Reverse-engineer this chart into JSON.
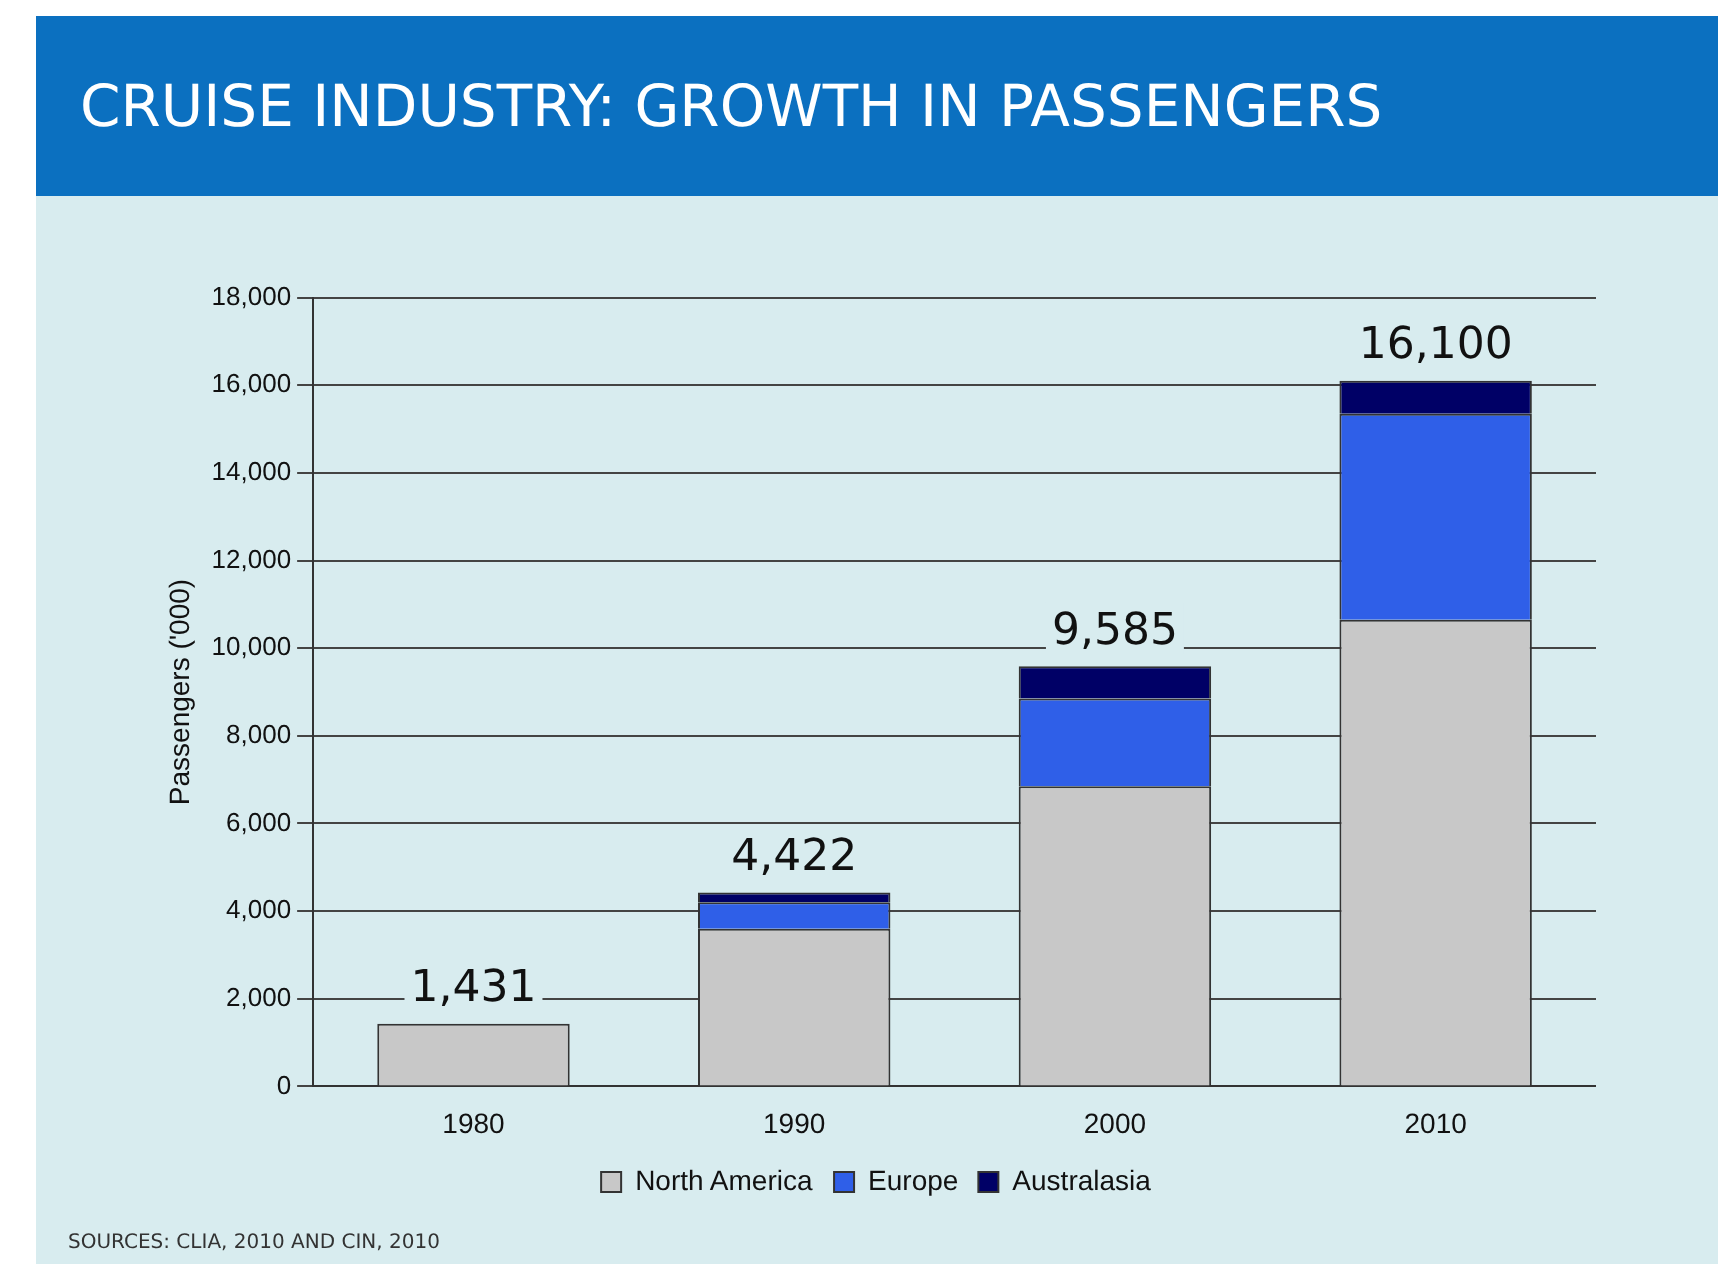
{
  "chart_data": {
    "type": "bar",
    "title": "CRUISE INDUSTRY: GROWTH IN PASSENGERS",
    "ylabel": "Passengers ('000)",
    "categories": [
      "1980",
      "1990",
      "2000",
      "2010"
    ],
    "stacked": true,
    "series": [
      {
        "name": "North America",
        "color": "#c8c8c8",
        "values": [
          1431,
          3600,
          6850,
          10650
        ]
      },
      {
        "name": "Europe",
        "color": "#2f5fe8",
        "values": [
          0,
          600,
          2000,
          4700
        ]
      },
      {
        "name": "Australasia",
        "color": "#000066",
        "values": [
          0,
          222,
          735,
          750
        ]
      }
    ],
    "totals": [
      "1,431",
      "4,422",
      "9,585",
      "16,100"
    ],
    "ylim": [
      0,
      18000
    ],
    "yticks": [
      0,
      {
        "value": 2000,
        "label": "2,000"
      },
      {
        "value": 4000,
        "label": "4,000"
      },
      {
        "value": 6000,
        "label": "6,000"
      },
      {
        "value": 8000,
        "label": "8,000"
      },
      {
        "value": 10000,
        "label": "10,000"
      },
      {
        "value": 12000,
        "label": "12,000"
      },
      {
        "value": 14000,
        "label": "14,000"
      },
      {
        "value": 16000,
        "label": "16,000"
      },
      {
        "value": 18000,
        "label": "18,000"
      }
    ],
    "grid": "y",
    "legend": "bottom",
    "annotations": [
      "SOURCES: CLIA, 2010 AND CIN, 2010"
    ]
  }
}
